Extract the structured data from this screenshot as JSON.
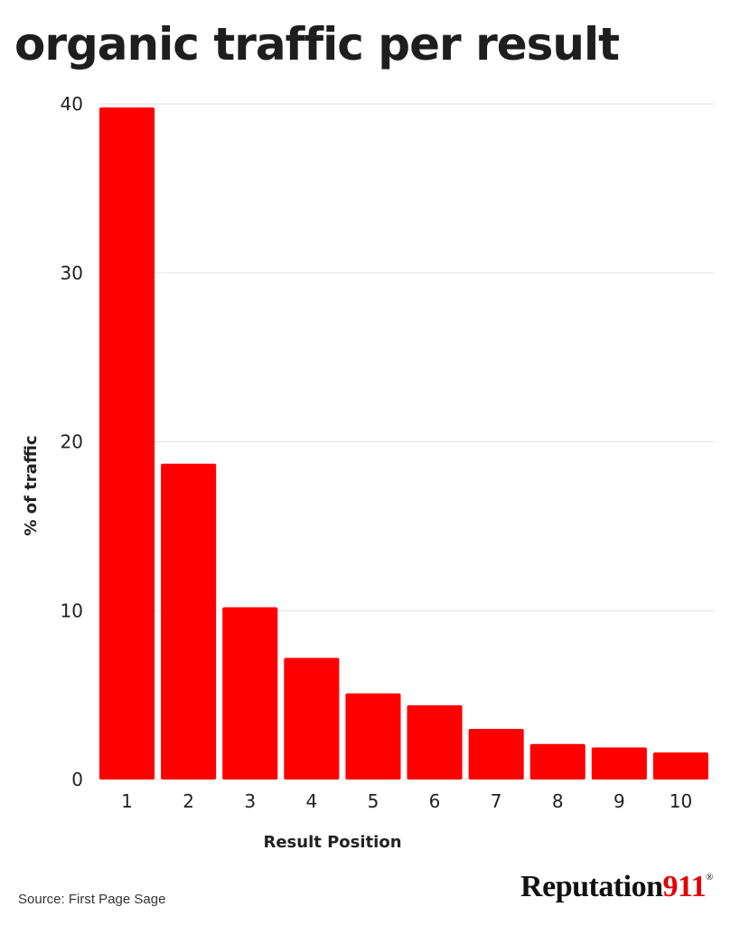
{
  "chart_data": {
    "type": "bar",
    "title": "organic traffic per result",
    "xlabel": "Result Position",
    "ylabel": "% of traffic",
    "categories": [
      "1",
      "2",
      "3",
      "4",
      "5",
      "6",
      "7",
      "8",
      "9",
      "10"
    ],
    "values": [
      39.8,
      18.7,
      10.2,
      7.2,
      5.1,
      4.4,
      3.0,
      2.1,
      1.9,
      1.6
    ],
    "ylim": [
      0,
      40
    ],
    "yticks": [
      "0",
      "10",
      "20",
      "30",
      "40"
    ],
    "grid": true,
    "bar_color": "#ff0000"
  },
  "footer": {
    "source": "Source: First Page Sage",
    "logo_text": "Reputation",
    "logo_number": "911",
    "logo_mark": "®"
  }
}
